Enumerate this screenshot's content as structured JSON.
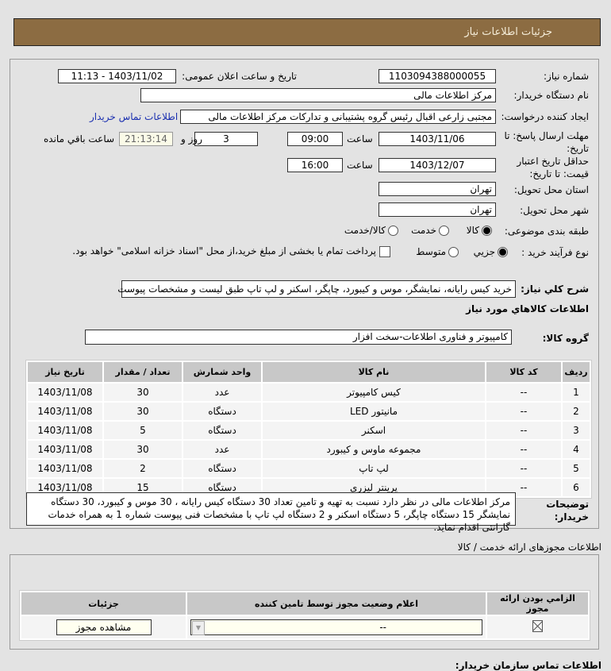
{
  "header": {
    "title": "جزئیات اطلاعات نیاز"
  },
  "form": {
    "need_number_label": "شماره نیاز:",
    "need_number": "1103094388000055",
    "announce_label": "تاریخ و ساعت اعلان عمومی:",
    "announce_value": "1403/11/02 - 11:13",
    "buyer_label": "نام دستگاه خريدار:",
    "buyer": "مرکز اطلاعات مالی",
    "creator_label": "ایجاد کننده درخواست:",
    "creator": "مجتبی زارعی اقبال رئیس گروه پشتیبانی و تدارکات مرکز اطلاعات مالی",
    "contact_link": "اطلاعات تماس خریدار",
    "deadline_label": "مهلت ارسال پاسخ: تا تاریخ:",
    "deadline_date": "1403/11/06",
    "time_label": "ساعت",
    "deadline_time": "09:00",
    "days": "3",
    "days_label": "روز و",
    "remaining": "21:13:14",
    "remaining_label": "ساعت باقي مانده",
    "validity_label": "حداقل تاریخ اعتبار قیمت: تا تاریخ:",
    "validity_date": "1403/12/07",
    "validity_time": "16:00",
    "province_label": "استان محل تحویل:",
    "province": "تهران",
    "city_label": "شهر محل تحویل:",
    "city": "تهران",
    "category_label": "طبقه بندی موضوعی:",
    "category_options": [
      "کالا",
      "خدمت",
      "کالا/خدمت"
    ],
    "process_label": "نوع فرآیند خرید :",
    "process_options": [
      "جزیي",
      "متوسط"
    ],
    "payment_note": "پرداخت تمام یا بخشی از مبلغ خرید،از محل \"اسناد خزانه اسلامی\" خواهد بود."
  },
  "summary": {
    "label": "شرح کلي نياز:",
    "value": "خرید کیس رایانه، نمایشگر، موس و کیبورد، چاپگر، اسکنر و لپ تاپ طبق لیست و مشخصات پیوست"
  },
  "goods_heading": "اطلاعات کالاهاي مورد نياز",
  "group": {
    "label": "گروه کالا:",
    "value": "کامپیوتر و فناوری اطلاعات-سخت افزار"
  },
  "table": {
    "headers": [
      "ردیف",
      "کد کالا",
      "نام کالا",
      "واحد شمارش",
      "تعداد / مقدار",
      "تاریخ نیاز"
    ],
    "rows": [
      [
        "1",
        "--",
        "کیس کامپیوتر",
        "عدد",
        "30",
        "1403/11/08"
      ],
      [
        "2",
        "--",
        "مانیتور LED",
        "دستگاه",
        "30",
        "1403/11/08"
      ],
      [
        "3",
        "--",
        "اسکنر",
        "دستگاه",
        "5",
        "1403/11/08"
      ],
      [
        "4",
        "--",
        "مجموعه ماوس و کیبورد",
        "عدد",
        "30",
        "1403/11/08"
      ],
      [
        "5",
        "--",
        "لپ تاپ",
        "دستگاه",
        "2",
        "1403/11/08"
      ],
      [
        "6",
        "--",
        "پرینتر لیزری",
        "دستگاه",
        "15",
        "1403/11/08"
      ]
    ]
  },
  "notes": {
    "label": "توضیحات خریدار:",
    "value": "مرکز اطلاعات مالی در نظر دارد نسبت به تهیه و تامین تعداد 30 دستگاه کیس رایانه ، 30 موس و کیبورد، 30 دستگاه نمایشگر 15 دستگاه چاپگر، 5 دستگاه اسکنر و 2 دستگاه لپ تاپ با مشخصات فنی پیوست شماره 1 به همراه خدمات گارانتی اقدام نماید."
  },
  "permits": {
    "title": "اطلاعات مجوزهای ارائه خدمت / کالا",
    "headers": [
      "الزامي بودن ارائه مجوز",
      "اعلام وضعیت مجوز توسط تامین کننده",
      "جزئیات"
    ],
    "status": "--",
    "view_button": "مشاهده مجوز"
  },
  "footer_heading": "اطلاعات تماس سازمان خریدار:"
}
